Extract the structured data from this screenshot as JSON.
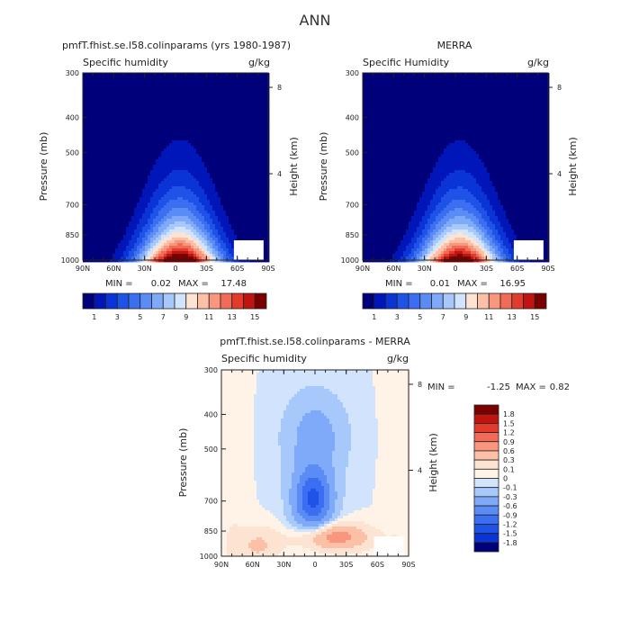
{
  "figure": {
    "title": "ANN"
  },
  "chart_data": [
    {
      "type": "heatmap",
      "title": "pmfT.fhist.se.l58.colinparams (yrs 1980-1987)",
      "subtitle": "Specific humidity",
      "units": "g/kg",
      "xlabel": "",
      "ylabel": "Pressure (mb)",
      "y2label": "Height (km)",
      "x_ticks": [
        "90N",
        "60N",
        "30N",
        "0",
        "30S",
        "60S",
        "90S"
      ],
      "y_ticks": [
        "300",
        "400",
        "500",
        "700",
        "850",
        "1000"
      ],
      "y2_ticks": [
        "8",
        "4"
      ],
      "min_label": "MIN =",
      "min_value": "0.02",
      "max_label": "MAX =",
      "max_value": "17.48",
      "colorbar_ticks": [
        "1",
        "3",
        "5",
        "7",
        "9",
        "11",
        "13",
        "15"
      ],
      "colors": [
        "#00007a",
        "#0016b8",
        "#0a34d6",
        "#1f52e6",
        "#3b6ef0",
        "#5b8cf6",
        "#7eaaf9",
        "#a6c8fb",
        "#d2e4fd",
        "#fde4d2",
        "#fbc0a6",
        "#f8977e",
        "#f26b58",
        "#e23b2c",
        "#bf1410",
        "#7a0000"
      ],
      "max_peak": 17.48,
      "max_cap": 0.85
    },
    {
      "type": "heatmap",
      "title": "MERRA",
      "subtitle": "Specific Humidity",
      "units": "g/kg",
      "xlabel": "",
      "ylabel": "Pressure (mb)",
      "y2label": "Height (km)",
      "x_ticks": [
        "90N",
        "60N",
        "30N",
        "0",
        "30S",
        "60S",
        "90S"
      ],
      "y_ticks": [
        "300",
        "400",
        "500",
        "700",
        "850",
        "1000"
      ],
      "y2_ticks": [
        "8",
        "4"
      ],
      "min_label": "MIN =",
      "min_value": "0.01",
      "max_label": "MAX =",
      "max_value": "16.95",
      "colorbar_ticks": [
        "1",
        "3",
        "5",
        "7",
        "9",
        "11",
        "13",
        "15"
      ],
      "colors": [
        "#00007a",
        "#0016b8",
        "#0a34d6",
        "#1f52e6",
        "#3b6ef0",
        "#5b8cf6",
        "#7eaaf9",
        "#a6c8fb",
        "#d2e4fd",
        "#fde4d2",
        "#fbc0a6",
        "#f8977e",
        "#f26b58",
        "#e23b2c",
        "#bf1410",
        "#7a0000"
      ],
      "max_peak": 16.95,
      "max_cap": 0.87
    },
    {
      "type": "heatmap",
      "title": "pmfT.fhist.se.l58.colinparams - MERRA",
      "subtitle": "Specific humidity",
      "units": "g/kg",
      "xlabel": "",
      "ylabel": "Pressure (mb)",
      "y2label": "Height (km)",
      "x_ticks": [
        "90N",
        "60N",
        "30N",
        "0",
        "30S",
        "60S",
        "90S"
      ],
      "y_ticks": [
        "300",
        "400",
        "500",
        "700",
        "850",
        "1000"
      ],
      "y2_ticks": [
        "8",
        "4"
      ],
      "min_label": "MIN =",
      "min_value": "-1.25",
      "max_label": "MAX =",
      "max_value": "0.82",
      "colorbar_ticks": [
        "1.8",
        "1.5",
        "1.2",
        "0.9",
        "0.6",
        "0.3",
        "0.1",
        "0",
        "-0.1",
        "-0.3",
        "-0.6",
        "-0.9",
        "-1.2",
        "-1.5",
        "-1.8"
      ],
      "colors": [
        "#7a0000",
        "#bf1410",
        "#e23b2c",
        "#f26b58",
        "#f8977e",
        "#fbc0a6",
        "#fde4d2",
        "#fff2e6",
        "#d2e4fd",
        "#a6c8fb",
        "#7eaaf9",
        "#5b8cf6",
        "#3b6ef0",
        "#1f52e6",
        "#0a34d6",
        "#00007a"
      ],
      "diff_levels": [
        -1.8,
        -1.5,
        -1.2,
        -0.9,
        -0.6,
        -0.3,
        -0.1,
        0,
        0.1,
        0.3,
        0.6,
        0.9,
        1.2,
        1.5,
        1.8
      ]
    }
  ]
}
